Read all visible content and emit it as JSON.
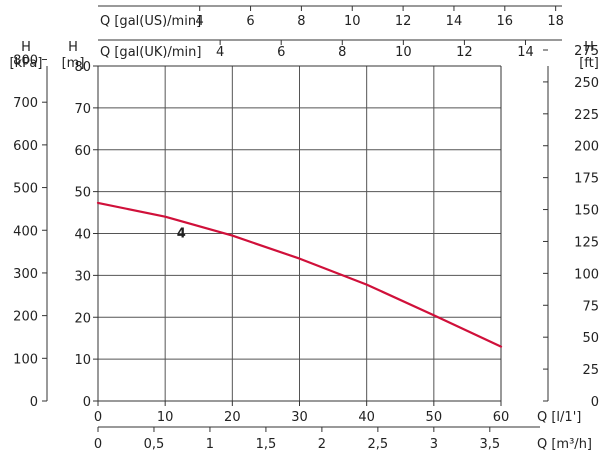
{
  "chart_data": {
    "type": "line",
    "title": "",
    "x_axis_primary": {
      "label": "Q [l/1']",
      "range": [
        0,
        60
      ],
      "ticks": [
        "0",
        "10",
        "20",
        "30",
        "40",
        "50",
        "60"
      ]
    },
    "x_axis_m3h": {
      "label": "Q [m³/h]",
      "ticks": [
        "0",
        "0,5",
        "1",
        "1,5",
        "2",
        "2,5",
        "3",
        "3,5"
      ],
      "values": [
        0,
        0.5,
        1,
        1.5,
        2,
        2.5,
        3,
        3.5
      ]
    },
    "x_axis_top_us": {
      "label": "Q [gal(US)/min]",
      "ticks": [
        "4",
        "6",
        "8",
        "10",
        "12",
        "14",
        "16",
        "18"
      ],
      "values": [
        4,
        6,
        8,
        10,
        12,
        14,
        16,
        18
      ]
    },
    "x_axis_top_uk": {
      "label": "Q [gal(UK)/min]",
      "ticks": [
        "4",
        "6",
        "8",
        "10",
        "12",
        "14"
      ],
      "values": [
        4,
        6,
        8,
        10,
        12,
        14
      ]
    },
    "y_axis_kpa": {
      "label_top": "H",
      "label_unit": "[kPa]",
      "ticks": [
        "0",
        "100",
        "200",
        "300",
        "400",
        "500",
        "600",
        "700",
        "800"
      ],
      "values": [
        0,
        100,
        200,
        300,
        400,
        500,
        600,
        700,
        800
      ]
    },
    "y_axis_m": {
      "label_top": "H",
      "label_unit": "[m]",
      "range": [
        0,
        80
      ],
      "ticks": [
        "0",
        "10",
        "20",
        "30",
        "40",
        "50",
        "60",
        "70",
        "80"
      ]
    },
    "y_axis_ft": {
      "label_top": "H",
      "label_unit": "[ft]",
      "ticks": [
        "0",
        "25",
        "50",
        "75",
        "100",
        "125",
        "150",
        "175",
        "200",
        "225",
        "250",
        "275"
      ],
      "values": [
        0,
        25,
        50,
        75,
        100,
        125,
        150,
        175,
        200,
        225,
        250,
        275
      ]
    },
    "series": [
      {
        "name": "4",
        "color": "#d0103a",
        "x": [
          0,
          10,
          20,
          30,
          40,
          50,
          60
        ],
        "y": [
          47.3,
          44.0,
          39.5,
          34.0,
          27.8,
          20.5,
          13.0
        ]
      }
    ],
    "grid": true
  }
}
